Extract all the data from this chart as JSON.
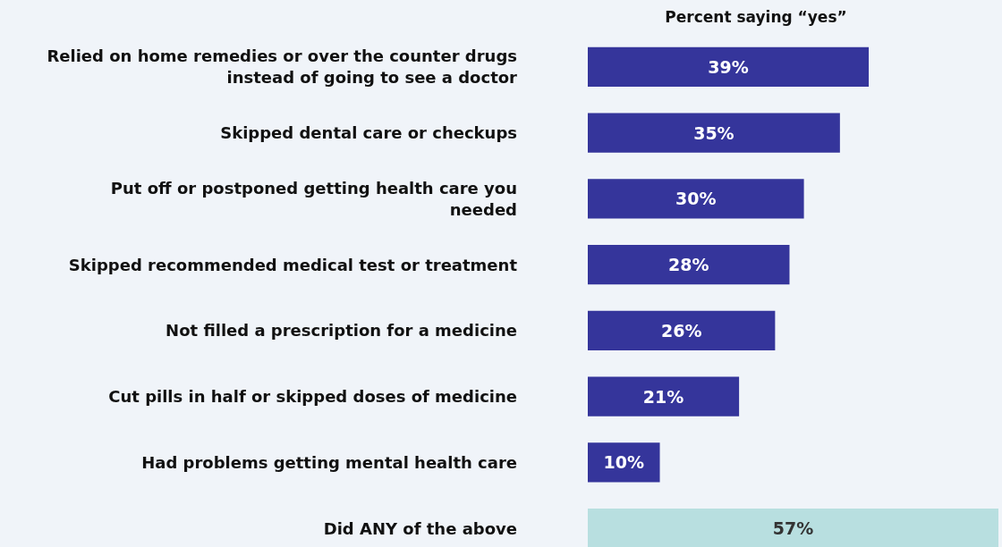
{
  "chart_data": {
    "type": "bar",
    "orientation": "horizontal",
    "title": "Percent saying “yes”",
    "categories": [
      "Relied on home remedies or over the counter drugs instead of going to see a doctor",
      "Skipped dental care or checkups",
      "Put off or postponed getting health care you needed",
      "Skipped recommended medical test or treatment",
      "Not filled a prescription for a medicine",
      "Cut pills in half or skipped doses of medicine",
      "Had problems getting mental health care",
      "Did ANY of the above"
    ],
    "values": [
      39,
      35,
      30,
      28,
      26,
      21,
      10,
      57
    ],
    "colors": [
      "#35359b",
      "#35359b",
      "#35359b",
      "#35359b",
      "#35359b",
      "#35359b",
      "#35359b",
      "#b8dfe0"
    ],
    "value_labels": [
      "39%",
      "35%",
      "30%",
      "28%",
      "26%",
      "21%",
      "10%",
      "57%"
    ]
  }
}
